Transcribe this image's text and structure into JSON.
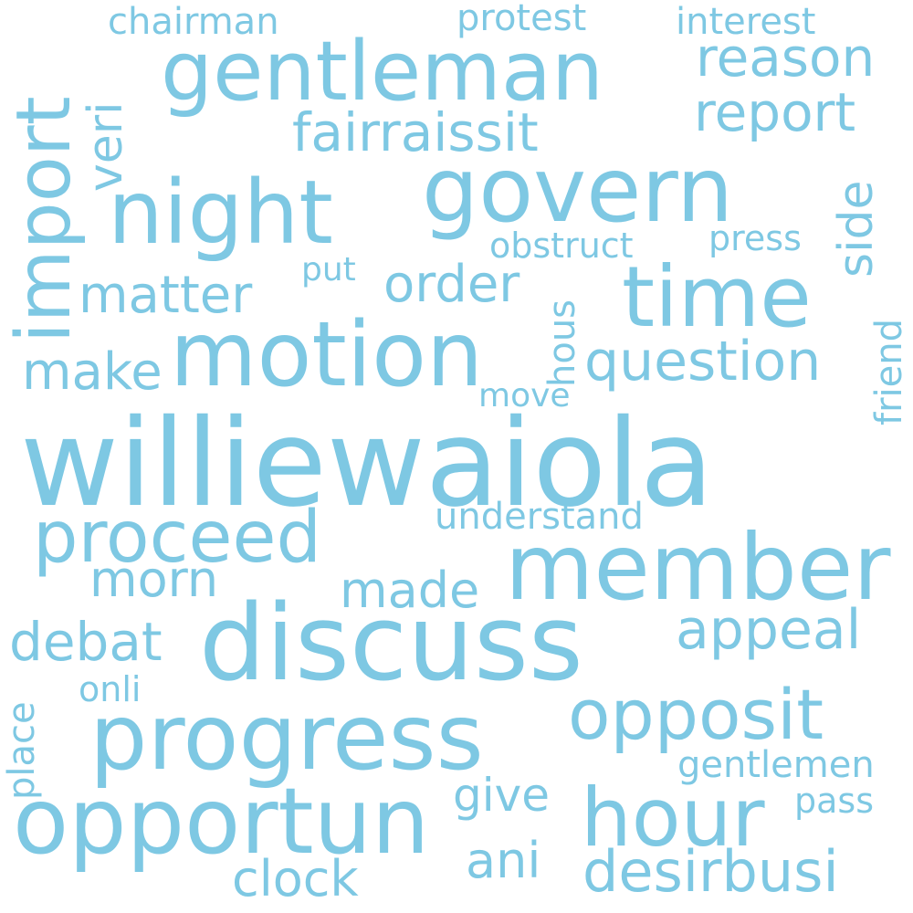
{
  "accent_color": "#7ec8e3",
  "background_color": "#ffffff",
  "words": {
    "williewaiola": "williewaiola",
    "discuss": "discuss",
    "progress": "progress",
    "opportun": "opportun",
    "member": "member",
    "motion": "motion",
    "govern": "govern",
    "night": "night",
    "gentleman": "gentleman",
    "time": "time",
    "import": "import",
    "hour": "hour",
    "opposit": "opposit",
    "proceed": "proceed",
    "question": "question",
    "desirbusi": "desirbusi",
    "appeal": "appeal",
    "fairraissit": "fairraissit",
    "report": "report",
    "reason": "reason",
    "order": "order",
    "matter": "matter",
    "morn": "morn",
    "made": "made",
    "make": "make",
    "debat": "debat",
    "clock": "clock",
    "ani": "ani",
    "give": "give",
    "side": "side",
    "veri": "veri",
    "gentlemen": "gentlemen",
    "understand": "understand",
    "onli": "onli",
    "obstruct": "obstruct",
    "press": "press",
    "pass": "pass",
    "chairman": "chairman",
    "protest": "protest",
    "interest": "interest",
    "move": "move",
    "put": "put",
    "hous": "hous",
    "friend": "friend",
    "place": "place"
  }
}
